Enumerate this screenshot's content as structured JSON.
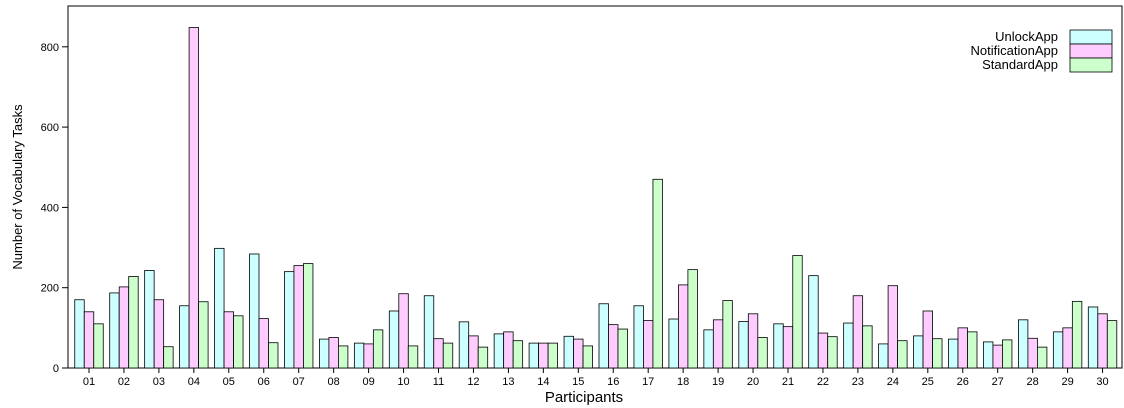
{
  "chart_data": {
    "type": "bar",
    "title": "",
    "xlabel": "Participants",
    "ylabel": "Number of Vocabulary Tasks",
    "ylim": [
      0,
      900
    ],
    "yticks": [
      0,
      200,
      400,
      600,
      800
    ],
    "grid": false,
    "legend_position": "top-right",
    "categories": [
      "01",
      "02",
      "03",
      "04",
      "05",
      "06",
      "07",
      "08",
      "09",
      "10",
      "11",
      "12",
      "13",
      "14",
      "15",
      "16",
      "17",
      "18",
      "19",
      "20",
      "21",
      "22",
      "23",
      "24",
      "25",
      "26",
      "27",
      "28",
      "29",
      "30"
    ],
    "series": [
      {
        "name": "UnlockApp",
        "color": "#ccffff",
        "values": [
          170,
          187,
          243,
          155,
          298,
          284,
          240,
          72,
          62,
          142,
          180,
          115,
          85,
          62,
          79,
          160,
          155,
          122,
          95,
          116,
          110,
          230,
          112,
          60,
          80,
          72,
          65,
          120,
          90,
          152
        ]
      },
      {
        "name": "NotificationApp",
        "color": "#ffccff",
        "values": [
          140,
          202,
          170,
          848,
          140,
          123,
          255,
          76,
          60,
          185,
          73,
          80,
          90,
          62,
          72,
          108,
          118,
          207,
          120,
          135,
          103,
          87,
          180,
          205,
          142,
          100,
          57,
          74,
          100,
          135
        ]
      },
      {
        "name": "StandardApp",
        "color": "#ccffcc",
        "values": [
          110,
          228,
          53,
          165,
          130,
          63,
          260,
          55,
          95,
          55,
          62,
          52,
          68,
          62,
          55,
          97,
          470,
          245,
          168,
          76,
          280,
          78,
          105,
          68,
          73,
          90,
          70,
          52,
          166,
          118
        ]
      }
    ]
  }
}
